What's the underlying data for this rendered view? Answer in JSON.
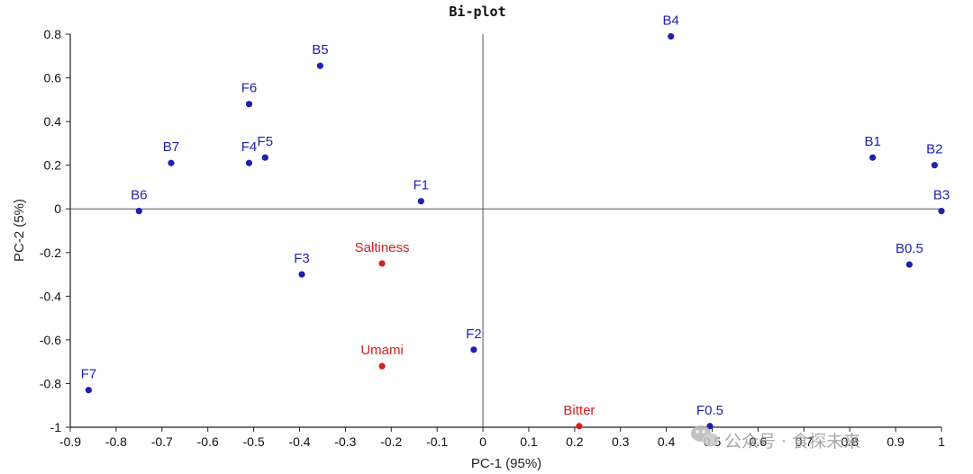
{
  "chart_data": {
    "type": "scatter",
    "title": "Bi-plot",
    "xlabel": "PC-1 (95%)",
    "ylabel": "PC-2 (5%)",
    "xlim": [
      -0.9,
      1.0
    ],
    "ylim": [
      -1.0,
      0.8
    ],
    "xticks": [
      -0.9,
      -0.8,
      -0.7,
      -0.6,
      -0.5,
      -0.4,
      -0.3,
      -0.2,
      -0.1,
      0,
      0.1,
      0.2,
      0.3,
      0.4,
      0.5,
      0.6,
      0.7,
      0.8,
      0.9,
      1
    ],
    "yticks": [
      -1,
      -0.8,
      -0.6,
      -0.4,
      -0.2,
      0,
      0.2,
      0.4,
      0.6,
      0.8
    ],
    "grid": false,
    "zero_lines": true,
    "series": [
      {
        "color": "#1f1fb0",
        "points": [
          {
            "label": "B5",
            "x": -0.355,
            "y": 0.655
          },
          {
            "label": "F6",
            "x": -0.51,
            "y": 0.48
          },
          {
            "label": "B7",
            "x": -0.68,
            "y": 0.21
          },
          {
            "label": "F4",
            "x": -0.51,
            "y": 0.21
          },
          {
            "label": "F5",
            "x": -0.475,
            "y": 0.235
          },
          {
            "label": "B6",
            "x": -0.75,
            "y": -0.01
          },
          {
            "label": "F1",
            "x": -0.135,
            "y": 0.035
          },
          {
            "label": "F3",
            "x": -0.395,
            "y": -0.3
          },
          {
            "label": "F2",
            "x": -0.02,
            "y": -0.645
          },
          {
            "label": "F7",
            "x": -0.86,
            "y": -0.83
          },
          {
            "label": "B4",
            "x": 0.41,
            "y": 0.79
          },
          {
            "label": "B1",
            "x": 0.85,
            "y": 0.235
          },
          {
            "label": "B2",
            "x": 0.985,
            "y": 0.2
          },
          {
            "label": "B3",
            "x": 1.0,
            "y": -0.01
          },
          {
            "label": "B0.5",
            "x": 0.93,
            "y": -0.255
          },
          {
            "label": "F0.5",
            "x": 0.495,
            "y": -0.995
          }
        ]
      },
      {
        "color": "#d42020",
        "points": [
          {
            "label": "Saltiness",
            "x": -0.22,
            "y": -0.25
          },
          {
            "label": "Umami",
            "x": -0.22,
            "y": -0.72
          },
          {
            "label": "Bitter",
            "x": 0.21,
            "y": -0.995
          }
        ]
      }
    ]
  },
  "watermark": {
    "text": "公众号 · 食探未来",
    "icon": "wechat-icon"
  }
}
